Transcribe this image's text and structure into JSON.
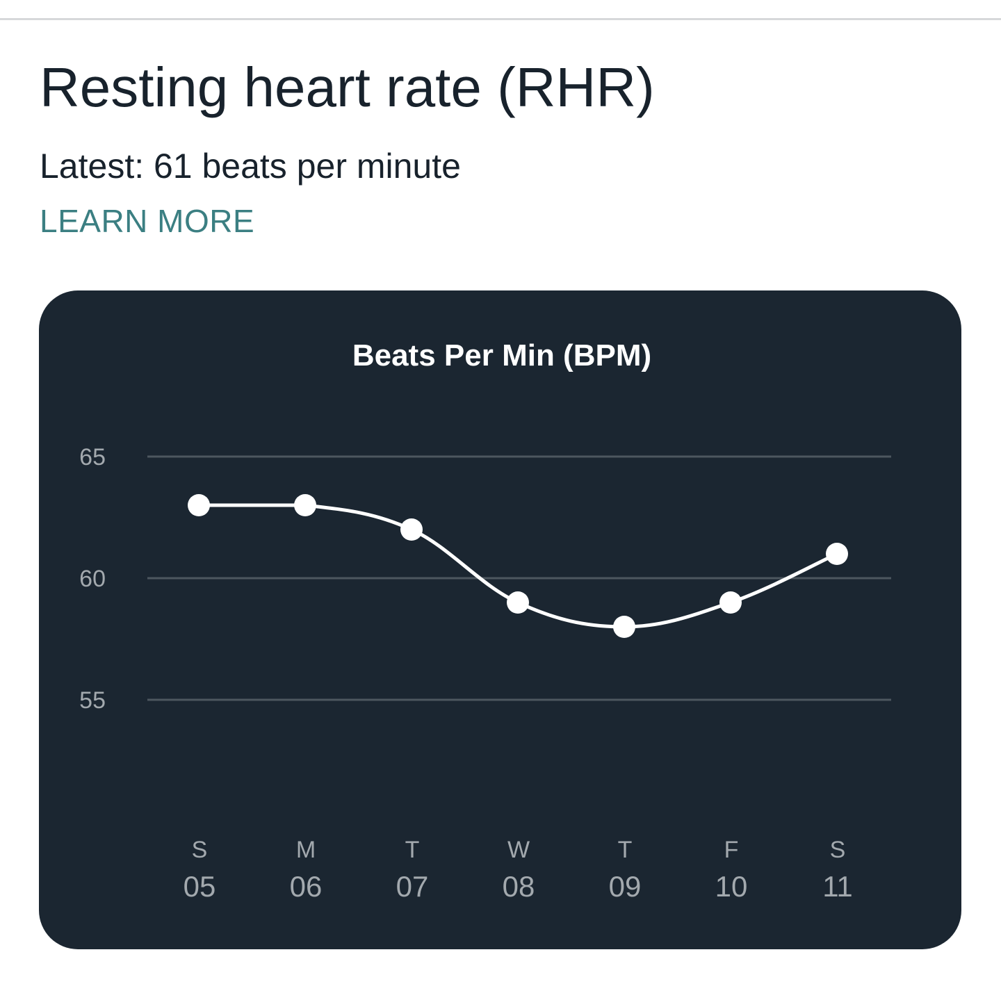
{
  "header": {
    "title": "Resting heart rate (RHR)",
    "latest": "Latest: 61 beats per minute",
    "learn_more": "LEARN MORE"
  },
  "colors": {
    "accent": "#3b7f82",
    "card_background": "#1b2631",
    "line": "#ffffff",
    "gridline": "#4d575f",
    "axis_text": "#a3a9ae"
  },
  "chart_data": {
    "type": "line",
    "title": "Beats Per Min (BPM)",
    "categories": [
      "S",
      "M",
      "T",
      "W",
      "T",
      "F",
      "S"
    ],
    "dates": [
      "05",
      "06",
      "07",
      "08",
      "09",
      "10",
      "11"
    ],
    "series": [
      {
        "values": [
          63,
          63,
          62,
          59,
          58,
          59,
          61
        ]
      }
    ],
    "yticks": [
      65,
      60,
      55
    ],
    "ylim": [
      50,
      65
    ],
    "grid": true,
    "curve": "smooth",
    "markers": true
  }
}
